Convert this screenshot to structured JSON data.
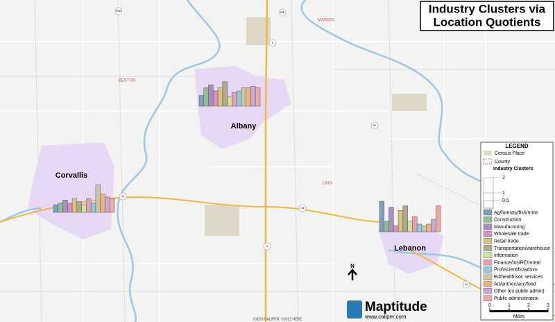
{
  "title": [
    "Industry Clusters via",
    "Location Quotients"
  ],
  "region_labels": [
    "MARION",
    "BENTON",
    "LINN"
  ],
  "highways": [
    "99E",
    "5",
    "99W",
    "20",
    "34",
    "34",
    "20",
    "5"
  ],
  "cities": [
    {
      "name": "Albany",
      "values": [
        0.7,
        1.2,
        1.4,
        1.0,
        1.2,
        1.6,
        0.6,
        0.9,
        1.0,
        1.2,
        1.2,
        1.3,
        1.2
      ]
    },
    {
      "name": "Corvallis",
      "values": [
        0.5,
        0.6,
        0.8,
        0.6,
        0.9,
        0.7,
        0.5,
        0.9,
        0.6,
        1.8,
        1.2,
        1.0,
        0.9
      ]
    },
    {
      "name": "Lebanon",
      "values": [
        2.0,
        0.7,
        1.6,
        0.4,
        1.4,
        1.7,
        0.7,
        1.0,
        0.5,
        0.4,
        0.5,
        0.8,
        1.7
      ]
    }
  ],
  "legend": {
    "title": "LEGEND",
    "items": [
      "Census Place",
      "County"
    ],
    "clusters_title": "Industry Clusters",
    "scale_ticks": [
      2,
      1,
      0.5
    ],
    "categories": [
      "Ag/forestry/fish/mine",
      "Construction",
      "Manufacturing",
      "Wholesale trade",
      "Retail trade",
      "Transportation/warehouse",
      "Information",
      "Finance/ins/RE/rental",
      "Prof/scientific/admin",
      "Ed/health/soc services",
      "Art/ent/rec/acc/food",
      "Other (ex public admin)",
      "Public administration"
    ],
    "colors": [
      "#7f9fbf",
      "#8fbf8f",
      "#a88fbf",
      "#d98fbf",
      "#d9c27f",
      "#b0a98a",
      "#c8e6a0",
      "#e8a0b0",
      "#8fc8e0",
      "#c8c8a8",
      "#f0b080",
      "#c8a8d8",
      "#f0a8a8"
    ]
  },
  "scale_bar": {
    "ticks": [
      0,
      1,
      2,
      3
    ],
    "unit": "Miles"
  },
  "north": "N",
  "brand": "Maptitude",
  "url": "www.caliper.com",
  "copyright": "©2023 CALIPER; ©2022 HERE"
}
